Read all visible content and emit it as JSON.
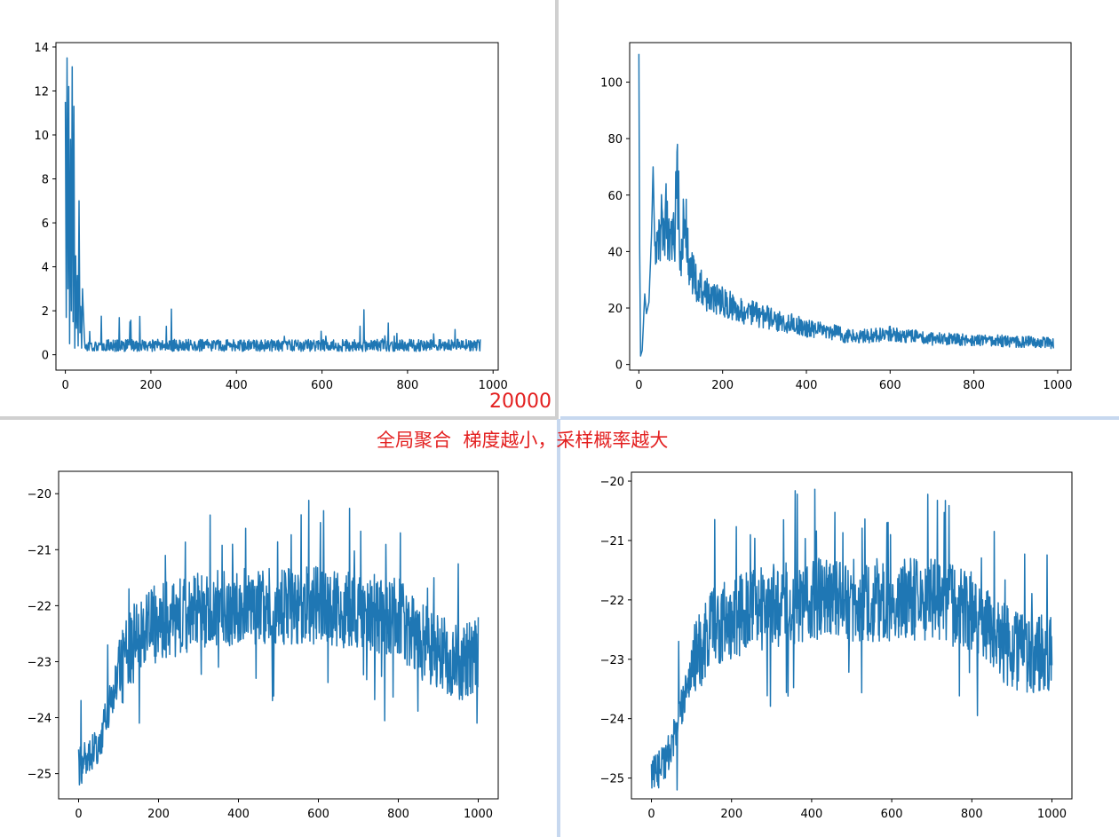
{
  "caption": {
    "number": "20000",
    "text": "全局聚合  梯度越小，采样概率越大"
  },
  "colors": {
    "line": "#1f77b4",
    "caption": "#e32020",
    "divider_gray": "#d0d0d0",
    "divider_blue": "#c7d8ef"
  },
  "chart_data": [
    {
      "type": "line",
      "title": "",
      "xlabel": "",
      "ylabel": "",
      "xlim": [
        -22,
        1012
      ],
      "ylim": [
        -0.7,
        14.2
      ],
      "xticks": [
        0,
        200,
        400,
        600,
        800,
        1000
      ],
      "yticks": [
        0,
        2,
        4,
        6,
        8,
        10,
        12,
        14
      ],
      "xtick_labels": [
        "0",
        "200",
        "400",
        "600",
        "800",
        "1000"
      ],
      "ytick_labels": [
        "0",
        "2",
        "4",
        "6",
        "8",
        "10",
        "12",
        "14"
      ],
      "grid": false,
      "series": [
        {
          "x_range": [
            0,
            970
          ],
          "points": [
            [
              0,
              11.5
            ],
            [
              2,
              1.7
            ],
            [
              4,
              13.5
            ],
            [
              6,
              3.0
            ],
            [
              8,
              12.2
            ],
            [
              10,
              0.5
            ],
            [
              12,
              9.8
            ],
            [
              14,
              2.0
            ],
            [
              16,
              13.1
            ],
            [
              18,
              1.5
            ],
            [
              20,
              11.3
            ],
            [
              22,
              0.3
            ],
            [
              24,
              4.5
            ],
            [
              26,
              1.2
            ],
            [
              28,
              3.6
            ],
            [
              30,
              0.4
            ],
            [
              32,
              7.0
            ],
            [
              34,
              1.0
            ],
            [
              36,
              2.2
            ],
            [
              38,
              0.3
            ],
            [
              40,
              3.0
            ],
            [
              45,
              0.5
            ],
            [
              50,
              2.1
            ],
            [
              55,
              0.3
            ],
            [
              60,
              1.8
            ],
            [
              70,
              0.2
            ],
            [
              80,
              1.5
            ],
            [
              100,
              0.2
            ],
            [
              120,
              1.9
            ],
            [
              140,
              0.2
            ],
            [
              170,
              2.5
            ],
            [
              200,
              0.1
            ],
            [
              250,
              1.7
            ],
            [
              300,
              0.1
            ],
            [
              350,
              0.9
            ],
            [
              400,
              0.1
            ],
            [
              450,
              0.9
            ],
            [
              500,
              0.1
            ],
            [
              520,
              1.3
            ],
            [
              560,
              0.1
            ],
            [
              600,
              1.2
            ],
            [
              650,
              0.1
            ],
            [
              700,
              1.9
            ],
            [
              720,
              0.1
            ],
            [
              750,
              1.3
            ],
            [
              800,
              0.1
            ],
            [
              850,
              1.0
            ],
            [
              900,
              0.1
            ],
            [
              920,
              1.6
            ],
            [
              940,
              0.2
            ],
            [
              960,
              0.2
            ],
            [
              962,
              2.5
            ],
            [
              965,
              0.3
            ],
            [
              968,
              1.5
            ],
            [
              970,
              0.2
            ]
          ],
          "noise_floor": 0.15,
          "noise_amp": 0.55
        }
      ]
    },
    {
      "type": "line",
      "title": "",
      "xlabel": "",
      "ylabel": "",
      "xlim": [
        -22,
        1032
      ],
      "ylim": [
        -2,
        114
      ],
      "xticks": [
        0,
        200,
        400,
        600,
        800,
        1000
      ],
      "yticks": [
        0,
        20,
        40,
        60,
        80,
        100
      ],
      "xtick_labels": [
        "0",
        "200",
        "400",
        "600",
        "800",
        "1000"
      ],
      "ytick_labels": [
        "0",
        "20",
        "40",
        "60",
        "80",
        "100"
      ],
      "grid": false,
      "series": [
        {
          "x_range": [
            0,
            990
          ],
          "points": [
            [
              0,
              110
            ],
            [
              2,
              40
            ],
            [
              4,
              3
            ],
            [
              8,
              5
            ],
            [
              14,
              25
            ],
            [
              18,
              18
            ],
            [
              24,
              22
            ],
            [
              30,
              45
            ],
            [
              34,
              70
            ],
            [
              38,
              42
            ],
            [
              45,
              50
            ],
            [
              55,
              48
            ],
            [
              65,
              52
            ],
            [
              75,
              40
            ],
            [
              85,
              45
            ],
            [
              92,
              68
            ],
            [
              100,
              35
            ],
            [
              110,
              55
            ],
            [
              120,
              35
            ],
            [
              140,
              28
            ],
            [
              170,
              24
            ],
            [
              200,
              22
            ],
            [
              250,
              19
            ],
            [
              300,
              17
            ],
            [
              350,
              15
            ],
            [
              400,
              13
            ],
            [
              450,
              12
            ],
            [
              500,
              10
            ],
            [
              550,
              10
            ],
            [
              600,
              11
            ],
            [
              650,
              10
            ],
            [
              700,
              9
            ],
            [
              750,
              9
            ],
            [
              800,
              8.5
            ],
            [
              850,
              8.5
            ],
            [
              900,
              8
            ],
            [
              950,
              8
            ],
            [
              990,
              7.5
            ]
          ],
          "noise_amp": 0.18
        }
      ]
    },
    {
      "type": "line",
      "title": "",
      "xlabel": "",
      "ylabel": "",
      "xlim": [
        -50,
        1050
      ],
      "ylim": [
        -25.45,
        -19.6
      ],
      "xticks": [
        0,
        200,
        400,
        600,
        800,
        1000
      ],
      "yticks": [
        -25,
        -24,
        -23,
        -22,
        -21,
        -20
      ],
      "xtick_labels": [
        "0",
        "200",
        "400",
        "600",
        "800",
        "1000"
      ],
      "ytick_labels": [
        "−25",
        "−24",
        "−23",
        "−22",
        "−21",
        "−20"
      ],
      "grid": false,
      "series": [
        {
          "x_range": [
            0,
            1000
          ],
          "points": [
            [
              0,
              -24.9
            ],
            [
              50,
              -24.5
            ],
            [
              100,
              -23.2
            ],
            [
              150,
              -22.5
            ],
            [
              200,
              -22.3
            ],
            [
              300,
              -22.1
            ],
            [
              400,
              -22.0
            ],
            [
              500,
              -22.0
            ],
            [
              600,
              -22.0
            ],
            [
              700,
              -22.1
            ],
            [
              800,
              -22.2
            ],
            [
              850,
              -22.6
            ],
            [
              900,
              -22.8
            ],
            [
              950,
              -23.0
            ],
            [
              1000,
              -22.9
            ]
          ],
          "noise_amp": 0.7,
          "spike_max": -19.85,
          "spike_min": -24.1
        }
      ]
    },
    {
      "type": "line",
      "title": "",
      "xlabel": "",
      "ylabel": "",
      "xlim": [
        -50,
        1050
      ],
      "ylim": [
        -25.35,
        -19.85
      ],
      "xticks": [
        0,
        200,
        400,
        600,
        800,
        1000
      ],
      "yticks": [
        -25,
        -24,
        -23,
        -22,
        -21,
        -20
      ],
      "xtick_labels": [
        "0",
        "200",
        "400",
        "600",
        "800",
        "1000"
      ],
      "ytick_labels": [
        "−25",
        "−24",
        "−23",
        "−22",
        "−21",
        "−20"
      ],
      "grid": false,
      "series": [
        {
          "x_range": [
            0,
            1000
          ],
          "points": [
            [
              0,
              -25.0
            ],
            [
              50,
              -24.5
            ],
            [
              100,
              -23.2
            ],
            [
              150,
              -22.5
            ],
            [
              200,
              -22.3
            ],
            [
              300,
              -22.1
            ],
            [
              400,
              -22.0
            ],
            [
              500,
              -22.0
            ],
            [
              600,
              -22.0
            ],
            [
              700,
              -22.0
            ],
            [
              800,
              -22.2
            ],
            [
              850,
              -22.6
            ],
            [
              900,
              -22.8
            ],
            [
              950,
              -23.0
            ],
            [
              1000,
              -22.9
            ]
          ],
          "noise_amp": 0.7,
          "spike_max": -20.1,
          "spike_min": -23.95
        }
      ]
    }
  ]
}
